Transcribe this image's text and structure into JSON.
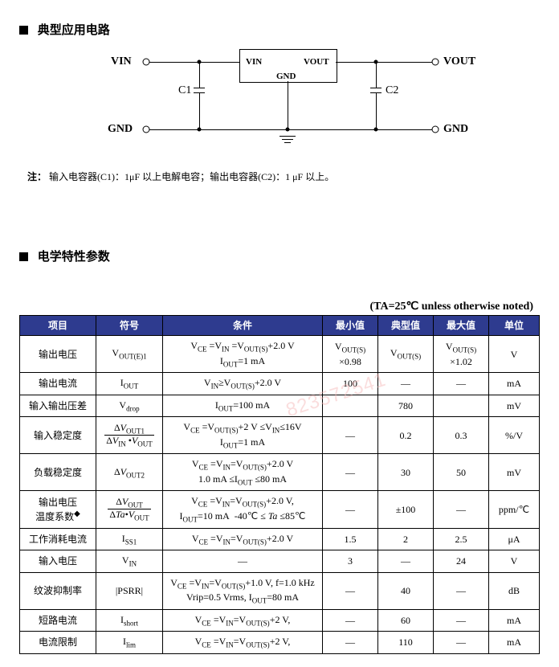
{
  "section1_title": "典型应用电路",
  "section2_title": "电学特性参数",
  "circuit": {
    "vin": "VIN",
    "vout": "VOUT",
    "gnd": "GND",
    "c1": "C1",
    "c2": "C2",
    "box_vin": "VIN",
    "box_vout": "VOUT",
    "box_gnd": "GND"
  },
  "note_label": "注：",
  "note_text": "输入电容器(C1)：1μF 以上电解电容；输出电容器(C2)：1 μF 以上。",
  "table_caption": "(TA=25℃  unless otherwise noted)",
  "headers": {
    "item": "项目",
    "symbol": "符号",
    "cond": "条件",
    "min": "最小值",
    "typ": "典型值",
    "max": "最大值",
    "unit": "单位"
  },
  "watermark": "823572541",
  "rows": [
    {
      "item": "输出电压",
      "symbol_html": "V<sub>OUT(E)1</sub>",
      "cond_html": "V<sub>CE</sub> =V<sub>IN</sub> =V<sub>OUT(S)</sub>+2.0 V<br>I<sub>OUT</sub>=1 mA",
      "min_html": "V<sub>OUT(S)</sub><br>×0.98",
      "typ_html": "V<sub>OUT(S)</sub>",
      "max_html": "V<sub>OUT(S)</sub><br>×1.02",
      "unit": "V"
    },
    {
      "item": "输出电流",
      "symbol_html": "I<sub>OUT</sub>",
      "cond_html": "V<sub>IN</sub>≥V<sub>OUT(S)</sub>+2.0 V",
      "min_html": "100",
      "typ_html": "—",
      "max_html": "—",
      "unit": "mA"
    },
    {
      "item": "输入输出压差",
      "symbol_html": "V<sub>drop</sub>",
      "cond_html": "I<sub>OUT</sub>=100 mA",
      "min_html": "",
      "typ_html": "780",
      "max_html": "",
      "unit": "mV"
    },
    {
      "item": "输入稳定度",
      "symbol_frac": {
        "num": "Δ<i>V</i><sub>OUT1</sub>",
        "den": "Δ<i>V</i><sub>IN</sub> •<i>V</i><sub>OUT</sub>"
      },
      "cond_html": "V<sub>CE</sub> =V<sub>OUT(S)</sub>+2 V ≤V<sub>IN</sub>≤16V<br>I<sub>OUT</sub>=1 mA",
      "min_html": "—",
      "typ_html": "0.2",
      "max_html": "0.3",
      "unit": "%/V"
    },
    {
      "item": "负载稳定度",
      "symbol_html": "Δ<i>V</i><sub>OUT2</sub>",
      "cond_html": "V<sub>CE</sub> =V<sub>IN</sub>=V<sub>OUT(S)</sub>+2.0 V<br>1.0 mA ≤I<sub>OUT</sub> ≤80 mA",
      "min_html": "—",
      "typ_html": "30",
      "max_html": "50",
      "unit": "mV"
    },
    {
      "item_html": "输出电压<br>温度系数<sup>◆</sup>",
      "symbol_frac": {
        "num": "Δ<i>V</i><sub>OUT</sub>",
        "den": "Δ<i>Ta</i>•<i>V</i><sub>OUT</sub>"
      },
      "cond_html": "V<sub>CE</sub> =V<sub>IN</sub>=V<sub>OUT(S)</sub>+2.0 V,<br>I<sub>OUT</sub>=10 mA&nbsp;&nbsp;-40℃ ≤ <i>Ta</i> ≤85℃",
      "min_html": "—",
      "typ_html": "±100",
      "max_html": "—",
      "unit": "ppm/℃"
    },
    {
      "item": "工作消耗电流",
      "symbol_html": "I<sub>SS1</sub>",
      "cond_html": "V<sub>CE</sub> =V<sub>IN</sub>=V<sub>OUT(S)</sub>+2.0 V",
      "min_html": "1.5",
      "typ_html": "2",
      "max_html": "2.5",
      "unit": "μA"
    },
    {
      "item": "输入电压",
      "symbol_html": "V<sub>IN</sub>",
      "cond_html": "—",
      "min_html": "3",
      "typ_html": "—",
      "max_html": "24",
      "unit": "V"
    },
    {
      "item": "纹波抑制率",
      "symbol_html": "|PSRR|",
      "cond_html": "V<sub>CE</sub> =V<sub>IN</sub>=V<sub>OUT(S)</sub>+1.0 V,&nbsp;f=1.0 kHz<br>Vrip=0.5 Vrms, I<sub>OUT</sub>=80 mA",
      "min_html": "—",
      "typ_html": "40",
      "max_html": "—",
      "unit": "dB"
    },
    {
      "item": "短路电流",
      "symbol_html": "I<sub>short</sub>",
      "cond_html": "V<sub>CE</sub> =V<sub>IN</sub>=V<sub>OUT(S)</sub>+2 V,",
      "min_html": "—",
      "typ_html": "60",
      "max_html": "—",
      "unit": "mA"
    },
    {
      "item": "电流限制",
      "symbol_html": "I<sub>lim</sub>",
      "cond_html": "V<sub>CE</sub> =V<sub>IN</sub>=V<sub>OUT(S)</sub>+2 V,",
      "min_html": "—",
      "typ_html": "110",
      "max_html": "—",
      "unit": "mA"
    }
  ]
}
